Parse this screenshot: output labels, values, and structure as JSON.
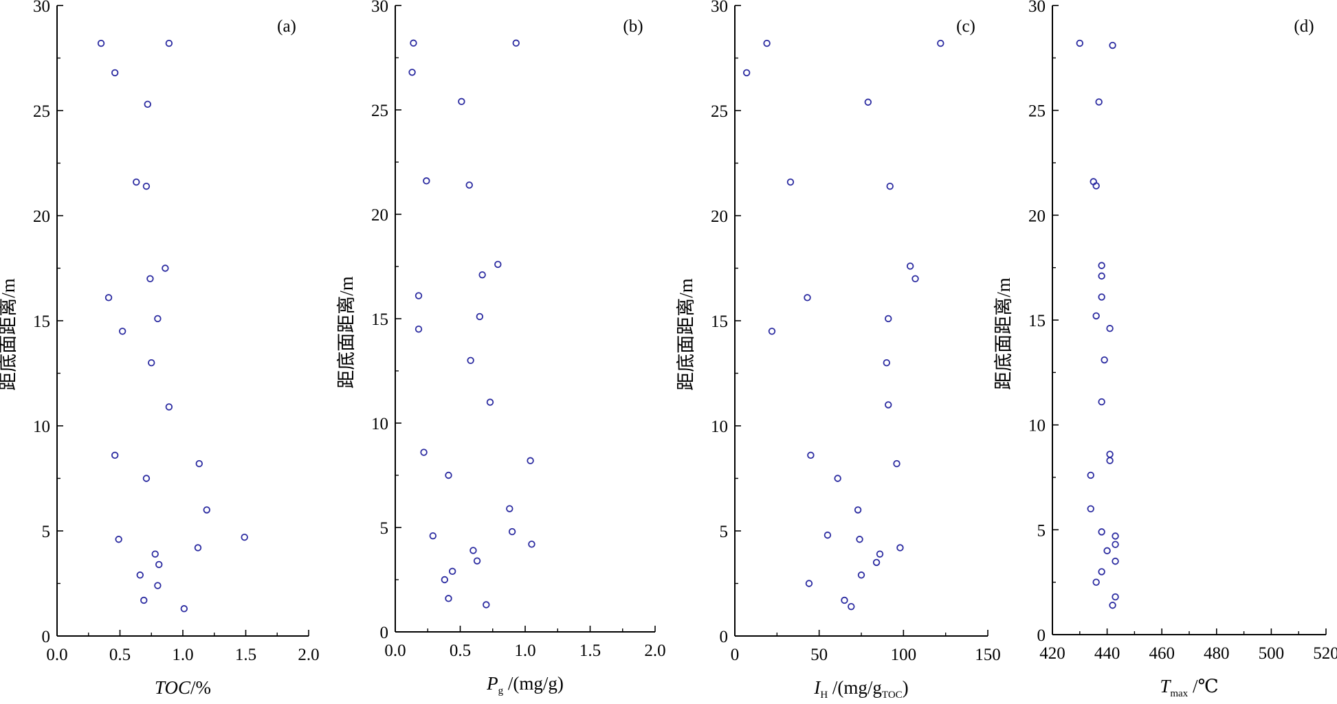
{
  "chart_data": [
    {
      "type": "scatter",
      "panel": "(a)",
      "xlabel": "TOC/%",
      "ylabel": "距底面距离/m",
      "xlim": [
        0,
        2.0
      ],
      "ylim": [
        0,
        30
      ],
      "xticks": [
        "0.0",
        "0.5",
        "1.0",
        "1.5",
        "2.0"
      ],
      "yticks": [
        "0",
        "5",
        "10",
        "15",
        "20",
        "25",
        "30"
      ],
      "marker_color": "#2a2aa0",
      "points": [
        {
          "x": 0.35,
          "y": 28.2
        },
        {
          "x": 0.89,
          "y": 28.2
        },
        {
          "x": 0.46,
          "y": 26.8
        },
        {
          "x": 0.72,
          "y": 25.3
        },
        {
          "x": 0.63,
          "y": 21.6
        },
        {
          "x": 0.71,
          "y": 21.4
        },
        {
          "x": 0.86,
          "y": 17.5
        },
        {
          "x": 0.74,
          "y": 17.0
        },
        {
          "x": 0.41,
          "y": 16.1
        },
        {
          "x": 0.8,
          "y": 15.1
        },
        {
          "x": 0.52,
          "y": 14.5
        },
        {
          "x": 0.75,
          "y": 13.0
        },
        {
          "x": 0.89,
          "y": 10.9
        },
        {
          "x": 0.46,
          "y": 8.6
        },
        {
          "x": 1.13,
          "y": 8.2
        },
        {
          "x": 0.71,
          "y": 7.5
        },
        {
          "x": 1.19,
          "y": 6.0
        },
        {
          "x": 0.49,
          "y": 4.6
        },
        {
          "x": 1.49,
          "y": 4.7
        },
        {
          "x": 1.12,
          "y": 4.2
        },
        {
          "x": 0.78,
          "y": 3.9
        },
        {
          "x": 0.81,
          "y": 3.4
        },
        {
          "x": 0.66,
          "y": 2.9
        },
        {
          "x": 0.8,
          "y": 2.4
        },
        {
          "x": 0.69,
          "y": 1.7
        },
        {
          "x": 1.01,
          "y": 1.3
        }
      ]
    },
    {
      "type": "scatter",
      "panel": "(b)",
      "xlabel_main": "P",
      "xlabel_sub": "g",
      "xlabel_rest": " /(mg/g)",
      "ylabel": "距底面距离/m",
      "xlim": [
        0,
        2.0
      ],
      "ylim": [
        0,
        30
      ],
      "xticks": [
        "0.0",
        "0.5",
        "1.0",
        "1.5",
        "2.0"
      ],
      "yticks": [
        "0",
        "5",
        "10",
        "15",
        "20",
        "25",
        "30"
      ],
      "marker_color": "#2a2aa0",
      "points": [
        {
          "x": 0.14,
          "y": 28.2
        },
        {
          "x": 0.93,
          "y": 28.2
        },
        {
          "x": 0.13,
          "y": 26.8
        },
        {
          "x": 0.51,
          "y": 25.4
        },
        {
          "x": 0.24,
          "y": 21.6
        },
        {
          "x": 0.57,
          "y": 21.4
        },
        {
          "x": 0.79,
          "y": 17.6
        },
        {
          "x": 0.67,
          "y": 17.1
        },
        {
          "x": 0.18,
          "y": 16.1
        },
        {
          "x": 0.65,
          "y": 15.1
        },
        {
          "x": 0.18,
          "y": 14.5
        },
        {
          "x": 0.58,
          "y": 13.0
        },
        {
          "x": 0.73,
          "y": 11.0
        },
        {
          "x": 0.22,
          "y": 8.6
        },
        {
          "x": 1.04,
          "y": 8.2
        },
        {
          "x": 0.41,
          "y": 7.5
        },
        {
          "x": 0.88,
          "y": 5.9
        },
        {
          "x": 0.29,
          "y": 4.6
        },
        {
          "x": 0.9,
          "y": 4.8
        },
        {
          "x": 1.05,
          "y": 4.2
        },
        {
          "x": 0.6,
          "y": 3.9
        },
        {
          "x": 0.63,
          "y": 3.4
        },
        {
          "x": 0.44,
          "y": 2.9
        },
        {
          "x": 0.38,
          "y": 2.5
        },
        {
          "x": 0.41,
          "y": 1.6
        },
        {
          "x": 0.7,
          "y": 1.3
        }
      ]
    },
    {
      "type": "scatter",
      "panel": "(c)",
      "xlabel_main": "I",
      "xlabel_sub": "H",
      "xlabel_rest": " /(mg/g",
      "xlabel_sub2": "TOC",
      "xlabel_end": ")",
      "ylabel": "距底面距离/m",
      "xlim": [
        0,
        150
      ],
      "ylim": [
        0,
        30
      ],
      "xticks": [
        "0",
        "50",
        "100",
        "150"
      ],
      "yticks": [
        "0",
        "5",
        "10",
        "15",
        "20",
        "25",
        "30"
      ],
      "marker_color": "#2a2aa0",
      "points": [
        {
          "x": 19,
          "y": 28.2
        },
        {
          "x": 122,
          "y": 28.2
        },
        {
          "x": 7,
          "y": 26.8
        },
        {
          "x": 79,
          "y": 25.4
        },
        {
          "x": 33,
          "y": 21.6
        },
        {
          "x": 92,
          "y": 21.4
        },
        {
          "x": 104,
          "y": 17.6
        },
        {
          "x": 107,
          "y": 17.0
        },
        {
          "x": 43,
          "y": 16.1
        },
        {
          "x": 91,
          "y": 15.1
        },
        {
          "x": 22,
          "y": 14.5
        },
        {
          "x": 90,
          "y": 13.0
        },
        {
          "x": 91,
          "y": 11.0
        },
        {
          "x": 45,
          "y": 8.6
        },
        {
          "x": 96,
          "y": 8.2
        },
        {
          "x": 61,
          "y": 7.5
        },
        {
          "x": 73,
          "y": 6.0
        },
        {
          "x": 55,
          "y": 4.8
        },
        {
          "x": 74,
          "y": 4.6
        },
        {
          "x": 98,
          "y": 4.2
        },
        {
          "x": 86,
          "y": 3.9
        },
        {
          "x": 84,
          "y": 3.5
        },
        {
          "x": 75,
          "y": 2.9
        },
        {
          "x": 44,
          "y": 2.5
        },
        {
          "x": 65,
          "y": 1.7
        },
        {
          "x": 69,
          "y": 1.4
        }
      ]
    },
    {
      "type": "scatter",
      "panel": "(d)",
      "xlabel_main": "T",
      "xlabel_sub": "max",
      "xlabel_rest": " /℃",
      "ylabel": "距底面距离/m",
      "xlim": [
        420,
        520
      ],
      "ylim": [
        0,
        30
      ],
      "xticks": [
        "420",
        "440",
        "460",
        "480",
        "500",
        "520"
      ],
      "yticks": [
        "0",
        "5",
        "10",
        "15",
        "20",
        "25",
        "30"
      ],
      "marker_color": "#2a2aa0",
      "points": [
        {
          "x": 430,
          "y": 28.2
        },
        {
          "x": 442,
          "y": 28.1
        },
        {
          "x": 437,
          "y": 25.4
        },
        {
          "x": 435,
          "y": 21.6
        },
        {
          "x": 436,
          "y": 21.4
        },
        {
          "x": 438,
          "y": 17.6
        },
        {
          "x": 438,
          "y": 17.1
        },
        {
          "x": 438,
          "y": 16.1
        },
        {
          "x": 436,
          "y": 15.2
        },
        {
          "x": 441,
          "y": 14.6
        },
        {
          "x": 439,
          "y": 13.1
        },
        {
          "x": 438,
          "y": 11.1
        },
        {
          "x": 441,
          "y": 8.6
        },
        {
          "x": 441,
          "y": 8.3
        },
        {
          "x": 434,
          "y": 7.6
        },
        {
          "x": 434,
          "y": 6.0
        },
        {
          "x": 438,
          "y": 4.9
        },
        {
          "x": 443,
          "y": 4.7
        },
        {
          "x": 443,
          "y": 4.3
        },
        {
          "x": 440,
          "y": 4.0
        },
        {
          "x": 443,
          "y": 3.5
        },
        {
          "x": 438,
          "y": 3.0
        },
        {
          "x": 436,
          "y": 2.5
        },
        {
          "x": 443,
          "y": 1.8
        },
        {
          "x": 442,
          "y": 1.4
        }
      ]
    }
  ]
}
